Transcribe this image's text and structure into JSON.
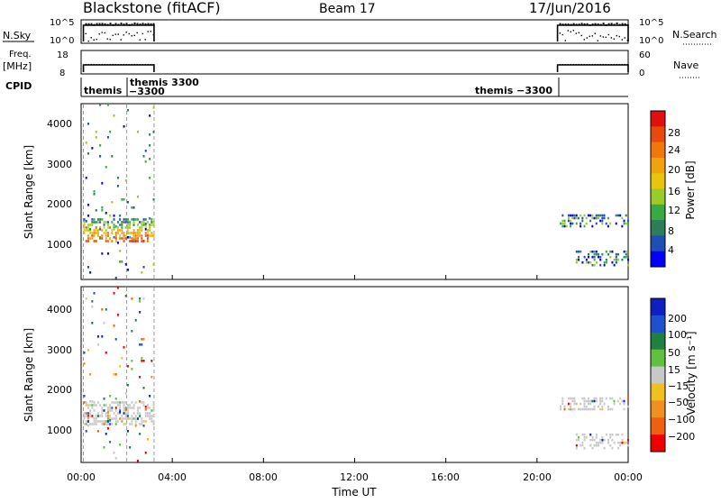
{
  "header": {
    "station": "Blackstone (fitACF)",
    "beam": "Beam 17",
    "date": "17/Jun/2016"
  },
  "strips": {
    "nsky_label": "N.Sky",
    "nsky_tick_top": "10^5",
    "nsky_tick_bottom": "10^0",
    "nsky_right_tick_top": "10^5",
    "nsky_right_tick_bottom": "10^0",
    "nsearch_label": "N.Search",
    "freq_label": "Freq.",
    "freq_unit": "[MHz]",
    "freq_tick_top": "18",
    "freq_tick_bottom": "8",
    "nave_tick_top": "60",
    "nave_tick_bottom": "0",
    "nave_label": "Nave",
    "cpid_label": "CPID",
    "cpid_segments": [
      {
        "label": "themis",
        "start_hour": 0.0,
        "end_hour": 1.0
      },
      {
        "label": "themis 3300",
        "start_hour": 2.0,
        "end_hour": 3.2
      },
      {
        "label": "−3300",
        "start_hour": 2.0,
        "end_hour": 3.2
      },
      {
        "label": "themis −3300",
        "start_hour": 20.9,
        "end_hour": 24.0
      }
    ]
  },
  "chart_data": [
    {
      "type": "heatmap",
      "name": "power",
      "ylabel": "Slant Range [km]",
      "ylim": [
        180,
        4550
      ],
      "yticks": [
        "1000",
        "2000",
        "3000",
        "4000"
      ],
      "xlim": [
        0,
        24
      ],
      "colorbar_label": "Power [dB]",
      "colorbar_ticks": [
        "4",
        "8",
        "12",
        "16",
        "20",
        "24",
        "28"
      ],
      "colorbar_colors": [
        "#0000ff",
        "#1f4fb4",
        "#2e7d5a",
        "#3aa843",
        "#9acb2a",
        "#e8c40c",
        "#f2a20c",
        "#f0760e",
        "#e84a0e",
        "#e01010"
      ],
      "data_gaps": [
        [
          3.2,
          20.9
        ]
      ],
      "scatter_regions": [
        {
          "hours": [
            0.1,
            3.2
          ],
          "range_km": [
            1150,
            1700
          ],
          "dominant_db": 20,
          "density": "dense"
        },
        {
          "hours": [
            0.1,
            3.2
          ],
          "range_km": [
            180,
            4550
          ],
          "dominant_db": 8,
          "density": "sparse"
        },
        {
          "hours": [
            21.0,
            24.0
          ],
          "range_km": [
            1500,
            1800
          ],
          "dominant_db": 8,
          "density": "medium"
        },
        {
          "hours": [
            21.7,
            24.0
          ],
          "range_km": [
            500,
            900
          ],
          "dominant_db": 12,
          "density": "medium"
        }
      ]
    },
    {
      "type": "heatmap",
      "name": "velocity",
      "ylabel": "Slant Range [km]",
      "ylim": [
        180,
        4550
      ],
      "yticks": [
        "1000",
        "2000",
        "3000",
        "4000"
      ],
      "xlim": [
        0,
        24
      ],
      "xlabel": "Time UT",
      "xticks": [
        "00:00",
        "04:00",
        "08:00",
        "12:00",
        "16:00",
        "20:00",
        "00:00"
      ],
      "colorbar_label": "Velocity [m s⁻¹]",
      "colorbar_ticks": [
        "200",
        "100",
        "50",
        "15",
        "−15",
        "−50",
        "−100",
        "−200"
      ],
      "colorbar_colors": [
        "#1020c0",
        "#2050d0",
        "#208040",
        "#60c040",
        "#c8c8c8",
        "#f0c020",
        "#f09020",
        "#f06010",
        "#f00000"
      ],
      "data_gaps": [
        [
          3.2,
          20.9
        ]
      ],
      "scatter_regions": [
        {
          "hours": [
            0.1,
            3.2
          ],
          "range_km": [
            1150,
            1700
          ],
          "dominant_ms": 0,
          "density": "dense"
        },
        {
          "hours": [
            0.1,
            3.2
          ],
          "range_km": [
            180,
            4550
          ],
          "dominant_ms": 0,
          "density": "sparse"
        },
        {
          "hours": [
            21.0,
            24.0
          ],
          "range_km": [
            1500,
            1800
          ],
          "dominant_ms": 0,
          "density": "medium"
        },
        {
          "hours": [
            21.7,
            24.0
          ],
          "range_km": [
            500,
            900
          ],
          "dominant_ms": 0,
          "density": "medium"
        }
      ]
    }
  ]
}
